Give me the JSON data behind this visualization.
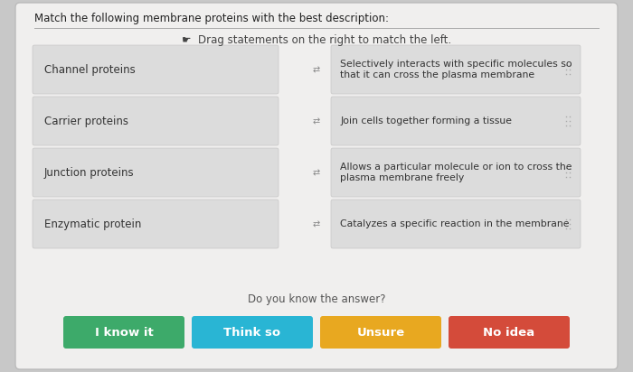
{
  "title": "Match the following membrane proteins with the best description:",
  "instruction": "☛  Drag statements on the right to match the left.",
  "left_items": [
    "Channel proteins",
    "Carrier proteins",
    "Junction proteins",
    "Enzymatic protein"
  ],
  "right_items": [
    "Selectively interacts with specific molecules so\nthat it can cross the plasma membrane",
    "Join cells together forming a tissue",
    "Allows a particular molecule or ion to cross the\nplasma membrane freely",
    "Catalyzes a specific reaction in the membrane"
  ],
  "buttons": [
    {
      "label": "I know it",
      "color": "#3DAA6A"
    },
    {
      "label": "Think so",
      "color": "#29B5D4"
    },
    {
      "label": "Unsure",
      "color": "#E8A820"
    },
    {
      "label": "No idea",
      "color": "#D44B3A"
    }
  ],
  "footer_text": "Do you know the answer?",
  "outer_bg": "#C8C8C8",
  "card_bg": "#F0EFEE",
  "box_bg": "#DCDCDC",
  "title_color": "#222222",
  "text_color": "#333333",
  "sep_color": "#AAAAAA",
  "link_color": "#888888"
}
